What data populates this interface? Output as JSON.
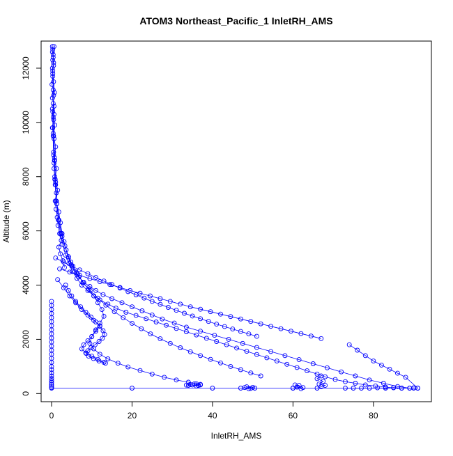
{
  "chart_data": {
    "type": "scatter",
    "title": "ATOM3 Northeast_Pacific_1 InletRH_AMS",
    "xlabel": "InletRH_AMS",
    "ylabel": "Altitude (m)",
    "xlim": [
      -2.6,
      94.4
    ],
    "ylim": [
      -300,
      13000
    ],
    "x_ticks": [
      0,
      20,
      40,
      60,
      80
    ],
    "y_ticks": [
      0,
      2000,
      4000,
      6000,
      8000,
      10000,
      12000
    ],
    "grid": false,
    "legend": "none",
    "style": "points-and-lines",
    "color": "#0000ff",
    "series": [
      {
        "x": [
          0.6,
          0.4,
          0.5,
          0.3,
          0.5,
          0.7,
          0.4,
          0.6,
          0.8,
          0.5,
          1.0,
          0.7,
          1.2,
          0.9,
          1.5,
          1.1,
          1.8,
          2.2,
          2.6,
          3.1,
          3.6,
          4.2,
          4.9,
          5.8,
          6.8,
          8.0,
          9.5,
          11.0,
          12.8,
          15.0,
          17.5,
          20.0,
          22.5,
          25.0,
          27.5,
          30.5,
          33.5,
          37.0,
          40.5,
          44.0,
          47.5,
          51.0,
          54.5,
          58.0,
          61.5,
          65.0,
          68.5,
          72.0,
          75.5,
          79.0,
          82.5,
          86.0,
          89.0,
          91.0
        ],
        "y": [
          12800,
          12500,
          12200,
          11900,
          11500,
          11100,
          10700,
          10300,
          9900,
          9500,
          9100,
          8700,
          8300,
          7900,
          7500,
          7100,
          6700,
          6300,
          5900,
          5600,
          5300,
          5000,
          4750,
          4500,
          4300,
          4100,
          3950,
          3800,
          3650,
          3500,
          3350,
          3200,
          3050,
          2900,
          2750,
          2600,
          2450,
          2300,
          2150,
          2000,
          1850,
          1700,
          1550,
          1400,
          1250,
          1100,
          950,
          800,
          650,
          500,
          380,
          260,
          200,
          200
        ]
      },
      {
        "x": [
          0.3,
          0.5,
          0.4,
          0.6,
          0.8,
          1.0,
          1.3,
          1.7,
          2.2,
          2.8,
          3.5,
          4.3,
          5.2,
          6.3,
          7.5,
          9.0,
          10.5,
          12.0,
          14.0,
          16.0,
          18.5,
          21.0,
          23.5,
          26.0,
          28.5,
          31.0,
          33.5,
          36.0,
          38.5,
          41.0,
          43.5,
          46.0,
          48.5,
          51.0,
          53.5,
          56.0,
          58.5,
          61.0,
          63.5,
          66.0,
          68.0,
          70.5,
          73.0,
          75.5,
          78.0,
          80.5,
          83.0,
          85.0,
          87.0
        ],
        "y": [
          11800,
          11000,
          10200,
          9400,
          8600,
          7800,
          7000,
          6400,
          5900,
          5500,
          5100,
          4800,
          4500,
          4250,
          4000,
          3800,
          3600,
          3450,
          3300,
          3150,
          3000,
          2880,
          2760,
          2640,
          2520,
          2400,
          2280,
          2160,
          2040,
          1920,
          1800,
          1680,
          1560,
          1440,
          1320,
          1200,
          1080,
          960,
          840,
          720,
          620,
          520,
          440,
          380,
          320,
          280,
          240,
          210,
          200
        ]
      },
      {
        "x": [
          0.2,
          0.4,
          0.6,
          0.9,
          1.3,
          1.8,
          2.5,
          3.3,
          4.2,
          5.3,
          6.5,
          7.8,
          9.2,
          10.5,
          11.5,
          12.5,
          13.0,
          12.0,
          11.0,
          10.0,
          9.5,
          10.5,
          12.0,
          14.0,
          16.5,
          19.0,
          22.0,
          25.0,
          28.0,
          31.0,
          34.0,
          36.0,
          37.0,
          36.5
        ],
        "y": [
          10500,
          9500,
          8500,
          7700,
          7000,
          6400,
          5900,
          5450,
          5050,
          4700,
          4400,
          4100,
          3850,
          3600,
          3350,
          3100,
          2850,
          2600,
          2350,
          2100,
          1850,
          1650,
          1450,
          1280,
          1120,
          980,
          850,
          720,
          600,
          500,
          420,
          360,
          320,
          300
        ]
      },
      {
        "x": [
          0.3,
          0.5,
          0.8,
          1.2,
          1.8,
          2.6,
          3.6,
          4.8,
          6.2,
          7.8,
          9.6,
          11.5,
          13.5,
          15.6,
          17.8,
          20.0,
          22.3,
          24.6,
          27.0,
          29.5,
          32.0,
          34.5,
          37.0,
          39.5,
          42.0,
          44.5,
          47.0,
          49.5,
          52.0
        ],
        "y": [
          9800,
          8800,
          7900,
          7100,
          6400,
          5800,
          5300,
          4850,
          4450,
          4100,
          3800,
          3520,
          3260,
          3020,
          2800,
          2590,
          2390,
          2200,
          2020,
          1850,
          1690,
          1540,
          1400,
          1260,
          1130,
          1000,
          880,
          760,
          650
        ]
      },
      {
        "x": [
          1.0,
          3.0,
          5.0,
          7.0,
          9.0,
          11.0,
          13.0,
          15.0,
          17.0,
          19.0,
          21.0,
          23.0,
          25.0,
          27.0,
          29.0,
          31.0,
          33.0,
          35.0,
          37.0,
          39.0,
          41.0,
          43.0,
          45.0,
          47.0,
          49.0,
          51.0
        ],
        "y": [
          5000,
          4850,
          4700,
          4560,
          4420,
          4280,
          4150,
          4020,
          3890,
          3760,
          3640,
          3520,
          3400,
          3290,
          3180,
          3070,
          2960,
          2860,
          2760,
          2660,
          2560,
          2470,
          2380,
          2290,
          2200,
          2110
        ]
      },
      {
        "x": [
          2.0,
          4.5,
          7.0,
          9.5,
          12.0,
          14.5,
          17.0,
          19.5,
          22.0,
          24.5,
          27.0,
          29.5,
          32.0,
          34.5,
          37.0,
          39.5,
          42.0,
          44.5,
          47.0,
          49.5,
          52.0,
          54.5,
          57.0,
          59.5,
          62.0,
          64.5,
          67.0
        ],
        "y": [
          4600,
          4480,
          4360,
          4240,
          4130,
          4020,
          3910,
          3800,
          3700,
          3600,
          3500,
          3400,
          3300,
          3200,
          3110,
          3020,
          2930,
          2840,
          2750,
          2660,
          2570,
          2480,
          2390,
          2300,
          2210,
          2120,
          2030
        ]
      },
      {
        "x": [
          1.5,
          3.0,
          4.5,
          6.0,
          7.5,
          9.0,
          10.5,
          12.0,
          11.0,
          10.0,
          9.0,
          8.0,
          7.5,
          8.5,
          10.0,
          11.5,
          13.0
        ],
        "y": [
          4200,
          3900,
          3600,
          3350,
          3100,
          2900,
          2700,
          2500,
          2300,
          2100,
          1950,
          1800,
          1650,
          1500,
          1380,
          1260,
          1150
        ]
      },
      {
        "x": [
          0.5,
          0.7,
          0.6,
          0.8,
          1.0,
          1.2,
          0.9,
          1.1,
          1.4,
          1.6,
          2.0,
          2.4,
          1.8,
          2.2,
          2.8,
          3.2
        ],
        "y": [
          8900,
          8600,
          8300,
          8000,
          7700,
          7400,
          7100,
          6800,
          6500,
          6200,
          5900,
          5650,
          5400,
          5150,
          4900,
          4650
        ]
      },
      {
        "x": [
          3.5,
          4.2,
          5.0,
          6.0,
          7.2,
          8.5,
          9.8,
          11.0,
          12.0,
          12.8,
          13.2,
          12.6,
          11.8,
          10.8,
          9.8,
          9.0,
          8.6,
          9.2,
          10.4,
          11.8,
          13.4
        ],
        "y": [
          4000,
          3800,
          3600,
          3400,
          3200,
          3000,
          2820,
          2640,
          2480,
          2320,
          2180,
          2040,
          1920,
          1800,
          1690,
          1580,
          1480,
          1380,
          1290,
          1200,
          1120
        ]
      },
      {
        "x": [
          34.0,
          35.0,
          36.0,
          37.0,
          35.5,
          36.5,
          34.5,
          33.5
        ],
        "y": [
          300,
          320,
          280,
          340,
          360,
          300,
          330,
          310
        ]
      },
      {
        "x": [
          47.0,
          48.0,
          49.0,
          50.0,
          50.5,
          48.5,
          49.5
        ],
        "y": [
          200,
          220,
          180,
          230,
          200,
          250,
          190
        ]
      },
      {
        "x": [
          60.0,
          61.0,
          62.0,
          61.5,
          60.5,
          62.5
        ],
        "y": [
          200,
          240,
          180,
          300,
          320,
          220
        ]
      },
      {
        "x": [
          66.0,
          67.0,
          68.0,
          66.5,
          67.5,
          66.0,
          67.0
        ],
        "y": [
          200,
          250,
          300,
          350,
          450,
          550,
          650
        ]
      },
      {
        "x": [
          73.0,
          75.0,
          77.0,
          79.0,
          81.0,
          83.0,
          85.0,
          87.0,
          89.0,
          90.0,
          91.0,
          88.0,
          86.0,
          84.0,
          82.0,
          80.0,
          78.0,
          76.0,
          74.0
        ],
        "y": [
          200,
          200,
          200,
          200,
          210,
          200,
          220,
          200,
          200,
          210,
          200,
          600,
          750,
          900,
          1050,
          1200,
          1400,
          1600,
          1800
        ]
      },
      {
        "x": [
          0.0,
          0.0,
          0.0,
          0.0,
          0.0,
          0.0,
          0.0,
          0.0,
          0.0,
          0.0,
          0.0,
          0.0,
          0.0,
          0.0,
          0.0,
          0.0,
          0.0,
          0.0,
          0.0,
          0.0,
          0.0,
          0.0,
          0.0,
          0.0,
          0.0,
          0.0
        ],
        "y": [
          3400,
          3250,
          3100,
          2950,
          2800,
          2650,
          2500,
          2350,
          2200,
          2050,
          1900,
          1750,
          1600,
          1450,
          1300,
          1150,
          1000,
          880,
          760,
          650,
          560,
          480,
          410,
          340,
          280,
          220
        ]
      },
      {
        "x": [
          0.0,
          20.0,
          40.0,
          60.0,
          90.0
        ],
        "y": [
          200,
          200,
          200,
          200,
          200
        ]
      },
      {
        "x": [
          0.2,
          0.3,
          0.2,
          0.4,
          0.3,
          0.5,
          0.2,
          0.3,
          0.1,
          0.4,
          0.2,
          0.6,
          0.3,
          0.5,
          0.2,
          0.4
        ],
        "y": [
          12800,
          12700,
          12600,
          12400,
          12300,
          12100,
          12000,
          11700,
          11400,
          11200,
          10900,
          10600,
          10400,
          10100,
          9800,
          9600
        ]
      }
    ]
  }
}
